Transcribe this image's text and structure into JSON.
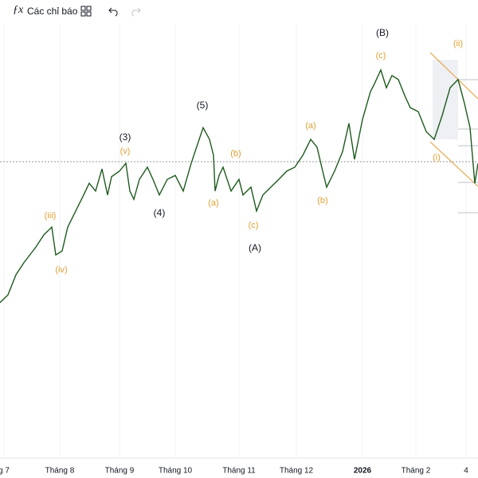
{
  "toolbar": {
    "indicators": "Các chỉ báo"
  },
  "chart_data": {
    "type": "line",
    "x": [
      0,
      10,
      20,
      30,
      45,
      55,
      65,
      70,
      78,
      85,
      95,
      105,
      112,
      120,
      128,
      135,
      140,
      150,
      158,
      163,
      168,
      175,
      185,
      192,
      200,
      210,
      220,
      230,
      240,
      250,
      255,
      263,
      268,
      270,
      275,
      280,
      290,
      300,
      305,
      315,
      322,
      330,
      340,
      350,
      360,
      370,
      380,
      390,
      398,
      405,
      410,
      420,
      430,
      438,
      445,
      455,
      465,
      470,
      478,
      485,
      492,
      500,
      508,
      515,
      525,
      535,
      545,
      555,
      565,
      575,
      583,
      590,
      596,
      600
    ],
    "series": [
      {
        "color": "#1e5a1e",
        "values": [
          35.8,
          37.6,
          42.2,
          45.0,
          48.6,
          51.4,
          53.2,
          46.8,
          47.7,
          53.2,
          56.9,
          60.6,
          63.3,
          61.5,
          66.6,
          60.6,
          64.8,
          66.1,
          67.9,
          61.5,
          59.6,
          64.2,
          67.0,
          64.2,
          60.6,
          64.2,
          65.1,
          61.5,
          67.9,
          73.4,
          76.1,
          73.4,
          69.7,
          61.5,
          65.1,
          67.0,
          61.5,
          64.2,
          60.6,
          62.4,
          56.9,
          60.6,
          62.4,
          64.2,
          66.1,
          67.0,
          69.7,
          73.4,
          71.6,
          66.1,
          62.4,
          66.1,
          70.6,
          77.1,
          68.8,
          78.0,
          84.4,
          86.2,
          89.4,
          85.3,
          88.1,
          87.2,
          83.5,
          80.7,
          79.8,
          75.2,
          73.4,
          78.9,
          85.3,
          87.2,
          81.7,
          76.1,
          63.3,
          67.9
        ]
      }
    ],
    "xlim": [
      0,
      600
    ],
    "ylim": [
      0,
      100
    ],
    "xticks": [
      {
        "value": 5,
        "label": "g 7"
      },
      {
        "value": 75,
        "label": "Tháng 8"
      },
      {
        "value": 150,
        "label": "Tháng 9"
      },
      {
        "value": 220,
        "label": "Tháng 10"
      },
      {
        "value": 300,
        "label": "Tháng 11"
      },
      {
        "value": 372,
        "label": "Tháng 12"
      },
      {
        "value": 455,
        "label": "2026"
      },
      {
        "value": 522,
        "label": "Tháng 2"
      },
      {
        "value": 585,
        "label": "4"
      }
    ],
    "annotations": [
      {
        "text": "(B)",
        "color": "#131722"
      },
      {
        "text": "(c)",
        "color": "#e0a030"
      },
      {
        "text": "(ii)",
        "color": "#e0a030"
      },
      {
        "text": "(5)",
        "color": "#131722"
      },
      {
        "text": "(a)",
        "color": "#e0a030"
      },
      {
        "text": "(3)",
        "color": "#131722"
      },
      {
        "text": "(v)",
        "color": "#e0a030"
      },
      {
        "text": "(b)",
        "color": "#e0a030"
      },
      {
        "text": "(i)",
        "color": "#e0a030"
      },
      {
        "text": "(4)",
        "color": "#131722"
      },
      {
        "text": "(a)",
        "color": "#e0a030"
      },
      {
        "text": "(b)",
        "color": "#e0a030"
      },
      {
        "text": "(iii)",
        "color": "#e0a030"
      },
      {
        "text": "(c)",
        "color": "#e0a030"
      },
      {
        "text": "(A)",
        "color": "#131722"
      },
      {
        "text": "(iv)",
        "color": "#e0a030"
      }
    ]
  }
}
